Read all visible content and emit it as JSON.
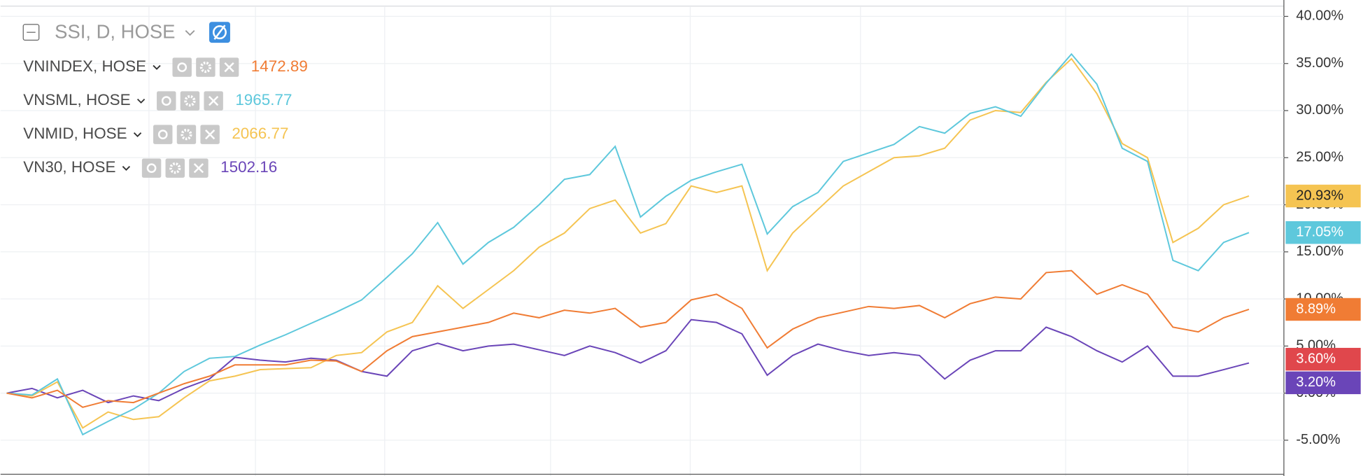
{
  "chart_data": {
    "type": "line",
    "main": {
      "name": "SSI, D, HOSE",
      "color": "#e0474c",
      "last_value": 3.6,
      "last_label": "3.60%"
    },
    "ylim": [
      -8.8,
      41.0
    ],
    "yticks": [
      {
        "value": -5,
        "label": "-5.00%"
      },
      {
        "value": 0,
        "label": "0.00%"
      },
      {
        "value": 5,
        "label": "5.00%"
      },
      {
        "value": 10,
        "label": "10.00%"
      },
      {
        "value": 15,
        "label": "15.00%"
      },
      {
        "value": 20,
        "label": "20.00%"
      },
      {
        "value": 25,
        "label": "25.00%"
      },
      {
        "value": 30,
        "label": "30.00%"
      },
      {
        "value": 35,
        "label": "35.00%"
      },
      {
        "value": 40,
        "label": "40.00%"
      }
    ],
    "grid": true,
    "series": [
      {
        "name": "VNINDEX, HOSE",
        "color": "#f07c34",
        "price": 1472.89,
        "last_label": "8.89%",
        "values": [
          0,
          -0.5,
          0.3,
          -1.5,
          -0.8,
          -1.0,
          0.0,
          1.0,
          1.8,
          3.0,
          3.0,
          3.0,
          3.5,
          3.4,
          2.3,
          4.5,
          6.0,
          6.5,
          7.0,
          7.5,
          8.5,
          8.0,
          8.8,
          8.5,
          9.0,
          7.0,
          7.5,
          9.9,
          10.5,
          9.0,
          4.8,
          6.8,
          8.0,
          8.6,
          9.2,
          9.0,
          9.3,
          8.0,
          9.5,
          10.2,
          10.0,
          12.8,
          13.0,
          10.5,
          11.5,
          10.5,
          7.0,
          6.5,
          8.0,
          8.89
        ]
      },
      {
        "name": "VNSML, HOSE",
        "color": "#5ec8dc",
        "price": 1965.77,
        "last_label": "17.05%",
        "values": [
          0,
          -0.2,
          1.5,
          -4.4,
          -3.0,
          -1.7,
          0,
          2.3,
          3.7,
          3.9,
          5.1,
          6.2,
          7.4,
          8.6,
          9.9,
          12.3,
          14.8,
          18.1,
          13.7,
          16.0,
          17.6,
          20.0,
          22.7,
          23.2,
          26.2,
          18.7,
          20.9,
          22.6,
          23.5,
          24.3,
          16.9,
          19.8,
          21.3,
          24.6,
          25.5,
          26.4,
          28.3,
          27.6,
          29.7,
          30.4,
          29.4,
          32.9,
          36.0,
          32.8,
          26.0,
          24.6,
          14.1,
          13.0,
          16.0,
          17.05
        ]
      },
      {
        "name": "VNMID, HOSE",
        "color": "#f5c452",
        "price": 2066.77,
        "last_label": "20.93%",
        "values": [
          0,
          -0.3,
          1.2,
          -3.7,
          -2.0,
          -2.8,
          -2.5,
          -0.5,
          1.3,
          1.8,
          2.5,
          2.6,
          2.7,
          4.0,
          4.3,
          6.5,
          7.5,
          11.4,
          9.0,
          11.0,
          13.0,
          15.5,
          17.0,
          19.6,
          20.5,
          17.0,
          18.0,
          22.0,
          21.3,
          22.0,
          13.0,
          17.0,
          19.5,
          22.0,
          23.5,
          25.0,
          25.2,
          26.0,
          29.0,
          30.0,
          29.8,
          33.0,
          35.5,
          31.8,
          26.5,
          25.0,
          16.0,
          17.5,
          20.0,
          20.93
        ]
      },
      {
        "name": "VN30, HOSE",
        "color": "#6a45b8",
        "price": 1502.16,
        "last_label": "3.20%",
        "values": [
          0,
          0.5,
          -0.5,
          0.3,
          -1.0,
          -0.3,
          -0.8,
          0.5,
          1.5,
          3.8,
          3.5,
          3.3,
          3.7,
          3.5,
          2.3,
          1.8,
          4.5,
          5.3,
          4.5,
          5.0,
          5.2,
          4.6,
          4.0,
          5.0,
          4.3,
          3.2,
          4.5,
          7.8,
          7.5,
          6.3,
          1.9,
          4.0,
          5.2,
          4.5,
          4.0,
          4.3,
          4.0,
          1.5,
          3.5,
          4.5,
          4.5,
          7.0,
          6.0,
          4.5,
          3.3,
          5.0,
          1.8,
          1.8,
          2.5,
          3.2
        ]
      }
    ]
  }
}
